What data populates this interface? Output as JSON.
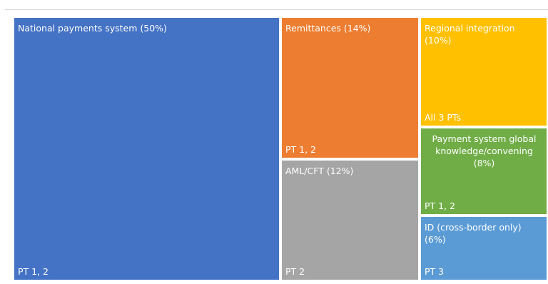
{
  "chart_data": {
    "type": "treemap",
    "items": [
      {
        "label": "National payments system (50%)",
        "value": 50,
        "note": "PT 1, 2",
        "color": "#4472C4"
      },
      {
        "label": "Remittances (14%)",
        "value": 14,
        "note": "PT 1, 2",
        "color": "#ED7D31"
      },
      {
        "label": "AML/CFT (12%)",
        "value": 12,
        "note": "PT 2",
        "color": "#A5A5A5"
      },
      {
        "label": "Regional integration (10%)",
        "value": 10,
        "note": "All 3 PTs",
        "color": "#FFC000"
      },
      {
        "label": "Payment system global knowledge/convening (8%)",
        "value": 8,
        "note": "PT 1, 2",
        "color": "#70AD47"
      },
      {
        "label": "ID (cross-border only) (6%)",
        "value": 6,
        "note": "PT 3",
        "color": "#5B9BD5"
      }
    ]
  }
}
